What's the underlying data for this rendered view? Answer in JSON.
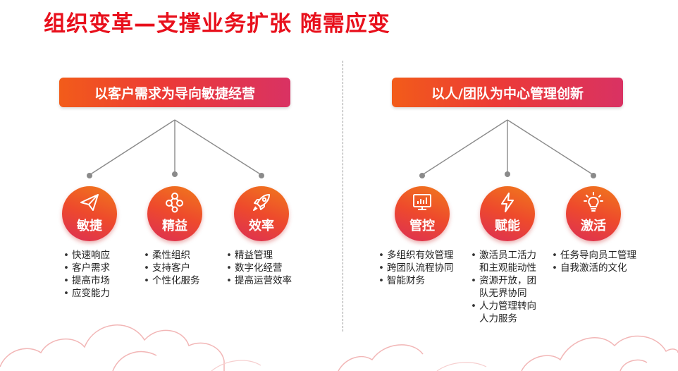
{
  "title": "组织变革—支撑业务扩张 随需应变",
  "left": {
    "banner": "以客户需求为导向敏捷经营",
    "nodes": [
      {
        "label": "敏捷",
        "icon": "paper-plane-icon",
        "items": [
          "快速响应",
          "客户需求",
          "提高市场",
          "应变能力"
        ]
      },
      {
        "label": "精益",
        "icon": "network-nodes-icon",
        "items": [
          "柔性组织",
          "支持客户",
          "个性化服务"
        ]
      },
      {
        "label": "效率",
        "icon": "rocket-icon",
        "items": [
          "精益管理",
          "数字化经营",
          "提高运营效率"
        ]
      }
    ]
  },
  "right": {
    "banner": "以人/团队为中心管理创新",
    "nodes": [
      {
        "label": "管控",
        "icon": "monitor-chart-icon",
        "items": [
          "多组织有效管理",
          "跨团队流程协同",
          "智能财务"
        ]
      },
      {
        "label": "赋能",
        "icon": "lightning-icon",
        "items": [
          "激活员工活力",
          "和主观能动性",
          "资源开放，团",
          "队无界协同",
          "人力管理转向",
          "人力服务"
        ]
      },
      {
        "label": "激活",
        "icon": "lightbulb-icon",
        "items": [
          "任务导向员工管理",
          "自我激活的文化"
        ]
      }
    ]
  },
  "colors": {
    "title": "#e8101c",
    "gradient_start": "#f25c1a",
    "gradient_end": "#d93263",
    "connector": "#8a8a8a"
  }
}
